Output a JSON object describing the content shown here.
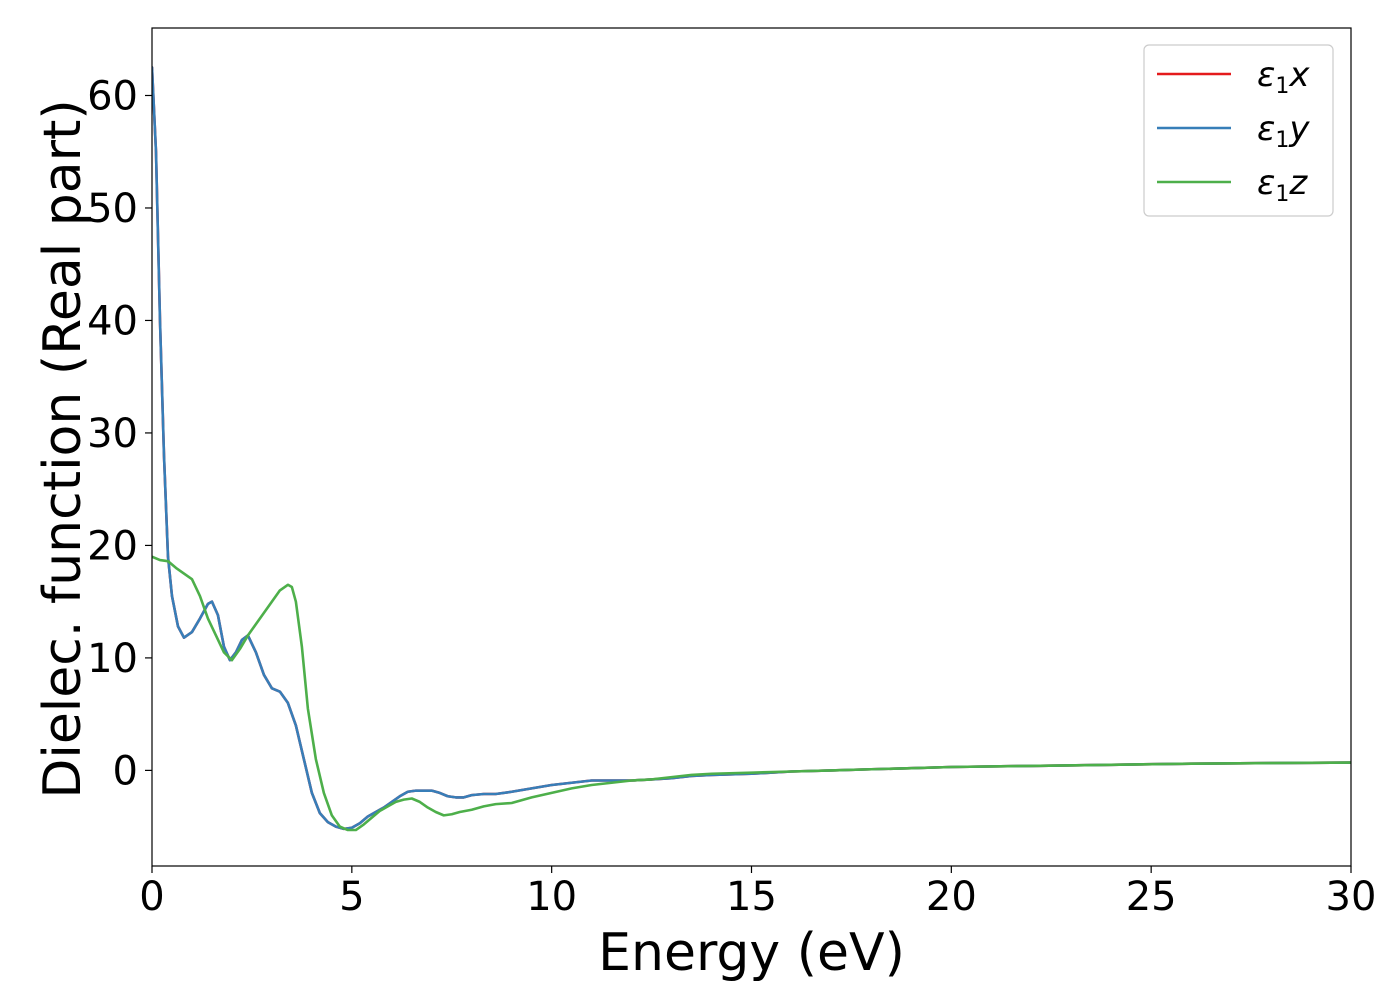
{
  "chart_data": {
    "type": "line",
    "xlabel": "Energy (eV)",
    "ylabel": "Dielec. function (Real part)",
    "xlim": [
      0,
      30
    ],
    "ylim": [
      -8.5,
      66
    ],
    "xticks": [
      0,
      5,
      10,
      15,
      20,
      25,
      30
    ],
    "yticks": [
      0,
      10,
      20,
      30,
      40,
      50,
      60
    ],
    "grid": false,
    "legend_position": "top-right",
    "series": [
      {
        "name": "ε₁x",
        "legend_base": "ε",
        "legend_sub": "1",
        "legend_var": "x",
        "color": "#e41a1c",
        "x": [
          0,
          0.1,
          0.2,
          0.3,
          0.4,
          0.5,
          0.65,
          0.8,
          1.0,
          1.2,
          1.4,
          1.5,
          1.65,
          1.8,
          1.95,
          2.1,
          2.25,
          2.4,
          2.6,
          2.8,
          3.0,
          3.2,
          3.4,
          3.6,
          3.8,
          4.0,
          4.2,
          4.4,
          4.6,
          4.8,
          5.0,
          5.2,
          5.4,
          5.6,
          5.8,
          6.0,
          6.2,
          6.4,
          6.6,
          6.8,
          7.0,
          7.2,
          7.4,
          7.6,
          7.8,
          8.0,
          8.3,
          8.6,
          9.0,
          9.5,
          10.0,
          10.5,
          11.0,
          11.5,
          12.0,
          12.5,
          13.0,
          13.5,
          14.0,
          15.0,
          16.0,
          17.0,
          18.0,
          19.0,
          20.0,
          22.0,
          24.0,
          26.0,
          28.0,
          30.0
        ],
        "values": [
          62.5,
          55.0,
          40.0,
          28.0,
          19.0,
          15.5,
          12.8,
          11.8,
          12.3,
          13.5,
          14.8,
          15.0,
          13.8,
          11.0,
          9.8,
          10.5,
          11.6,
          12.0,
          10.5,
          8.5,
          7.3,
          7.0,
          6.0,
          4.0,
          1.0,
          -2.0,
          -3.8,
          -4.6,
          -5.0,
          -5.2,
          -5.1,
          -4.7,
          -4.1,
          -3.7,
          -3.3,
          -2.8,
          -2.3,
          -1.9,
          -1.8,
          -1.8,
          -1.8,
          -2.0,
          -2.3,
          -2.4,
          -2.4,
          -2.2,
          -2.1,
          -2.1,
          -1.9,
          -1.6,
          -1.3,
          -1.1,
          -0.9,
          -0.9,
          -0.9,
          -0.8,
          -0.7,
          -0.5,
          -0.4,
          -0.3,
          -0.1,
          0.0,
          0.1,
          0.2,
          0.3,
          0.4,
          0.5,
          0.6,
          0.65,
          0.7
        ]
      },
      {
        "name": "ε₁y",
        "legend_base": "ε",
        "legend_sub": "1",
        "legend_var": "y",
        "color": "#377eb8",
        "x": [
          0,
          0.1,
          0.2,
          0.3,
          0.4,
          0.5,
          0.65,
          0.8,
          1.0,
          1.2,
          1.4,
          1.5,
          1.65,
          1.8,
          1.95,
          2.1,
          2.25,
          2.4,
          2.6,
          2.8,
          3.0,
          3.2,
          3.4,
          3.6,
          3.8,
          4.0,
          4.2,
          4.4,
          4.6,
          4.8,
          5.0,
          5.2,
          5.4,
          5.6,
          5.8,
          6.0,
          6.2,
          6.4,
          6.6,
          6.8,
          7.0,
          7.2,
          7.4,
          7.6,
          7.8,
          8.0,
          8.3,
          8.6,
          9.0,
          9.5,
          10.0,
          10.5,
          11.0,
          11.5,
          12.0,
          12.5,
          13.0,
          13.5,
          14.0,
          15.0,
          16.0,
          17.0,
          18.0,
          19.0,
          20.0,
          22.0,
          24.0,
          26.0,
          28.0,
          30.0
        ],
        "values": [
          62.5,
          55.0,
          40.0,
          28.0,
          19.0,
          15.5,
          12.8,
          11.8,
          12.3,
          13.5,
          14.8,
          15.0,
          13.8,
          11.0,
          9.8,
          10.5,
          11.6,
          12.0,
          10.5,
          8.5,
          7.3,
          7.0,
          6.0,
          4.0,
          1.0,
          -2.0,
          -3.8,
          -4.6,
          -5.0,
          -5.2,
          -5.1,
          -4.7,
          -4.1,
          -3.7,
          -3.3,
          -2.8,
          -2.3,
          -1.9,
          -1.8,
          -1.8,
          -1.8,
          -2.0,
          -2.3,
          -2.4,
          -2.4,
          -2.2,
          -2.1,
          -2.1,
          -1.9,
          -1.6,
          -1.3,
          -1.1,
          -0.9,
          -0.9,
          -0.9,
          -0.8,
          -0.7,
          -0.5,
          -0.4,
          -0.3,
          -0.1,
          0.0,
          0.1,
          0.2,
          0.3,
          0.4,
          0.5,
          0.6,
          0.65,
          0.7
        ]
      },
      {
        "name": "ε₁z",
        "legend_base": "ε",
        "legend_sub": "1",
        "legend_var": "z",
        "color": "#4daf4a",
        "x": [
          0,
          0.2,
          0.4,
          0.6,
          0.8,
          1.0,
          1.2,
          1.4,
          1.6,
          1.8,
          2.0,
          2.2,
          2.4,
          2.6,
          2.8,
          3.0,
          3.2,
          3.4,
          3.5,
          3.6,
          3.75,
          3.9,
          4.1,
          4.3,
          4.5,
          4.7,
          4.9,
          5.1,
          5.3,
          5.5,
          5.7,
          5.9,
          6.1,
          6.3,
          6.5,
          6.7,
          6.9,
          7.1,
          7.3,
          7.5,
          7.7,
          8.0,
          8.3,
          8.6,
          9.0,
          9.5,
          10.0,
          10.5,
          11.0,
          11.5,
          12.0,
          12.5,
          13.0,
          13.5,
          14.0,
          15.0,
          16.0,
          17.0,
          18.0,
          19.0,
          20.0,
          22.0,
          24.0,
          26.0,
          28.0,
          30.0
        ],
        "values": [
          19.0,
          18.7,
          18.6,
          18.0,
          17.5,
          17.0,
          15.5,
          13.5,
          12.0,
          10.5,
          9.8,
          10.8,
          12.0,
          13.0,
          14.0,
          15.0,
          16.0,
          16.5,
          16.3,
          15.0,
          11.0,
          5.5,
          1.0,
          -2.0,
          -4.0,
          -5.0,
          -5.3,
          -5.3,
          -4.8,
          -4.2,
          -3.6,
          -3.2,
          -2.8,
          -2.6,
          -2.5,
          -2.8,
          -3.3,
          -3.7,
          -4.0,
          -3.9,
          -3.7,
          -3.5,
          -3.2,
          -3.0,
          -2.9,
          -2.4,
          -2.0,
          -1.6,
          -1.3,
          -1.1,
          -0.9,
          -0.8,
          -0.6,
          -0.4,
          -0.3,
          -0.2,
          -0.1,
          0.0,
          0.1,
          0.2,
          0.3,
          0.4,
          0.5,
          0.6,
          0.65,
          0.7
        ]
      }
    ]
  }
}
